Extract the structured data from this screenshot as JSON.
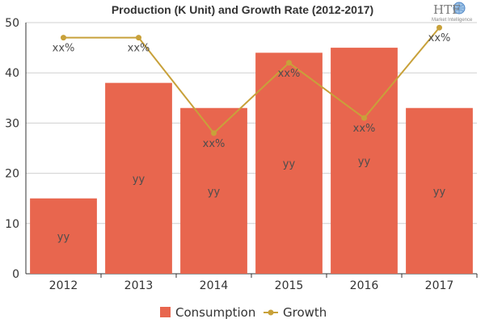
{
  "chart_data": {
    "type": "bar",
    "title": "Production (K Unit) and Growth Rate (2012-2017)",
    "categories": [
      "2012",
      "2013",
      "2014",
      "2015",
      "2016",
      "2017"
    ],
    "ylim": [
      0,
      50
    ],
    "yticks": [
      0,
      10,
      20,
      30,
      40,
      50
    ],
    "grid": true,
    "legend_position": "bottom-center",
    "series": [
      {
        "name": "Consumption",
        "type": "bar",
        "color": "#e8664e",
        "values": [
          15,
          38,
          33,
          44,
          45,
          33
        ],
        "data_labels": [
          "yy",
          "yy",
          "yy",
          "yy",
          "yy",
          "yy"
        ]
      },
      {
        "name": "Growth",
        "type": "line",
        "color": "#c8a13a",
        "values": [
          47,
          47,
          28,
          42,
          31,
          49
        ],
        "data_labels": [
          "xx%",
          "xx%",
          "xx%",
          "xx%",
          "xx%",
          "xx%"
        ]
      }
    ]
  },
  "logo": {
    "text": "HTF",
    "subtitle": "Market Intelligence",
    "icon": "globe-icon"
  }
}
